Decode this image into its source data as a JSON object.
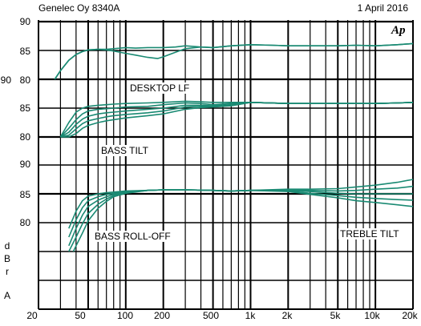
{
  "header": {
    "left": "Genelec Oy 8340A",
    "right": "1 April 2016"
  },
  "logo": "Ap",
  "unit_label": [
    "d",
    "B",
    "r",
    "A"
  ],
  "chart_data": {
    "type": "line",
    "x_scale": "log",
    "xlim": [
      20,
      20000
    ],
    "x_ticks": [
      20,
      50,
      100,
      200,
      500,
      1000,
      2000,
      5000,
      10000,
      20000
    ],
    "x_tick_labels": [
      "20",
      "50",
      "100",
      "200",
      "500",
      "1k",
      "2k",
      "5k",
      "10k",
      "20k"
    ],
    "ylabel": "dBrA",
    "grid": true,
    "panels": [
      {
        "annotation": "DESKTOP LF",
        "ylim": [
          80,
          90
        ],
        "y_ticks": [
          80,
          85,
          90
        ],
        "series": [
          {
            "x": [
              27,
              30,
              35,
              40,
              45,
              50,
              60,
              70,
              80,
              100,
              120,
              150,
              180,
              200,
              250,
              300,
              400,
              500,
              700,
              1000,
              1500,
              2000,
              3000,
              5000,
              7000,
              10000,
              15000,
              20000
            ],
            "y": [
              80,
              81.5,
              83.3,
              84.3,
              84.8,
              85.1,
              85.2,
              85.2,
              85.3,
              85.5,
              85.4,
              85.5,
              85.5,
              85.5,
              85.6,
              85.8,
              85.6,
              85.5,
              85.8,
              86,
              85.9,
              85.8,
              85.8,
              85.8,
              85.9,
              85.8,
              86,
              86.2
            ]
          },
          {
            "x": [
              27,
              30,
              35,
              40,
              45,
              50,
              60,
              70,
              80,
              100,
              120,
              150,
              180,
              200,
              250,
              300,
              400,
              500,
              700,
              1000,
              1500,
              2000,
              3000,
              5000,
              7000,
              10000,
              15000,
              20000
            ],
            "y": [
              80,
              81.5,
              83.3,
              84.3,
              84.8,
              85.1,
              85.2,
              85.1,
              84.9,
              84.5,
              84.2,
              83.8,
              83.6,
              83.9,
              84.7,
              85.3,
              85.6,
              85.5,
              85.8,
              86,
              85.9,
              85.8,
              85.8,
              85.8,
              85.9,
              85.8,
              86,
              86.2
            ]
          }
        ]
      },
      {
        "annotation": "BASS TILT",
        "ylim": [
          80,
          90
        ],
        "y_ticks": [
          80,
          85,
          90
        ],
        "series": [
          {
            "x": [
              30,
              35,
              40,
              45,
              50,
              60,
              70,
              80,
              100,
              150,
              200,
              300,
              400,
              500,
              700,
              1000,
              2000,
              5000,
              10000,
              15000,
              20000
            ],
            "y": [
              80,
              82.5,
              84.3,
              85,
              85.3,
              85.5,
              85.6,
              85.7,
              85.8,
              85.9,
              86,
              86.2,
              86.1,
              86,
              86,
              86,
              85.8,
              85.8,
              85.8,
              85.9,
              86
            ]
          },
          {
            "x": [
              30,
              35,
              40,
              45,
              50,
              60,
              70,
              80,
              100,
              150,
              200,
              300,
              400,
              500,
              700,
              1000,
              2000,
              5000,
              10000,
              15000,
              20000
            ],
            "y": [
              80,
              81.5,
              83,
              84,
              84.5,
              84.8,
              84.9,
              85,
              85.2,
              85.3,
              85.6,
              85.9,
              85.8,
              85.6,
              85.8,
              86,
              85.8,
              85.8,
              85.8,
              85.9,
              86
            ]
          },
          {
            "x": [
              30,
              35,
              40,
              45,
              50,
              60,
              70,
              80,
              100,
              150,
              200,
              300,
              400,
              500,
              700,
              1000,
              2000,
              5000,
              10000,
              15000,
              20000
            ],
            "y": [
              80,
              80.8,
              82.2,
              83.1,
              83.6,
              84,
              84.2,
              84.3,
              84.5,
              84.8,
              85,
              85.5,
              85.5,
              85.4,
              85.6,
              86,
              85.8,
              85.8,
              85.8,
              85.9,
              86
            ]
          },
          {
            "x": [
              30,
              35,
              40,
              45,
              50,
              60,
              70,
              80,
              100,
              150,
              200,
              300,
              400,
              500,
              700,
              1000,
              2000,
              5000,
              10000,
              15000,
              20000
            ],
            "y": [
              80,
              80.3,
              81.4,
              82.3,
              82.8,
              83.2,
              83.5,
              83.7,
              83.9,
              84.2,
              84.5,
              85.2,
              85.3,
              85.3,
              85.5,
              86,
              85.8,
              85.8,
              85.8,
              85.9,
              86
            ]
          },
          {
            "x": [
              30,
              35,
              40,
              45,
              50,
              60,
              70,
              80,
              100,
              150,
              200,
              300,
              400,
              500,
              700,
              1000,
              2000,
              5000,
              10000,
              15000,
              20000
            ],
            "y": [
              80,
              80,
              80.6,
              81.5,
              82,
              82.5,
              82.8,
              83,
              83.3,
              83.7,
              84,
              84.8,
              85.1,
              85.2,
              85.4,
              86,
              85.8,
              85.8,
              85.8,
              85.9,
              86
            ]
          }
        ]
      },
      {
        "annotations": [
          "BASS ROLL-OFF",
          "TREBLE TILT"
        ],
        "ylim": [
          75,
          90
        ],
        "y_ticks": [
          80,
          85,
          90
        ],
        "series": [
          {
            "x": [
              35,
              40,
              45,
              50,
              60,
              70,
              80,
              100,
              150,
              200,
              300,
              500,
              700,
              1000,
              2000,
              3000,
              5000,
              7000,
              10000,
              15000,
              20000
            ],
            "y": [
              79,
              82,
              83.8,
              84.6,
              85,
              85.2,
              85.3,
              85.5,
              85.6,
              85.7,
              85.7,
              85.6,
              85.5,
              85.6,
              85.8,
              85.8,
              85.9,
              86.2,
              86.5,
              87,
              87.5
            ]
          },
          {
            "x": [
              35,
              40,
              45,
              50,
              60,
              70,
              80,
              100,
              150,
              200,
              300,
              500,
              700,
              1000,
              2000,
              3000,
              5000,
              7000,
              10000,
              15000,
              20000
            ],
            "y": [
              77.5,
              80.5,
              82.6,
              83.8,
              84.5,
              84.9,
              85.1,
              85.4,
              85.6,
              85.7,
              85.7,
              85.6,
              85.5,
              85.6,
              85.7,
              85.6,
              85.5,
              85.6,
              85.8,
              86,
              86.3
            ]
          },
          {
            "x": [
              35,
              40,
              45,
              50,
              60,
              70,
              80,
              100,
              150,
              200,
              300,
              500,
              700,
              1000,
              2000,
              3000,
              5000,
              7000,
              10000,
              15000,
              20000
            ],
            "y": [
              76,
              79,
              81.3,
              82.8,
              83.9,
              84.5,
              84.9,
              85.3,
              85.6,
              85.7,
              85.7,
              85.6,
              85.5,
              85.6,
              85.6,
              85.4,
              85.1,
              85,
              85,
              85,
              85
            ]
          },
          {
            "x": [
              35,
              40,
              45,
              50,
              60,
              70,
              80,
              100,
              150,
              200,
              300,
              500,
              700,
              1000,
              2000,
              3000,
              5000,
              7000,
              10000,
              15000,
              20000
            ],
            "y": [
              75,
              77.5,
              79.8,
              81.6,
              83.2,
              84.1,
              84.7,
              85.2,
              85.6,
              85.7,
              85.7,
              85.6,
              85.5,
              85.6,
              85.5,
              85.1,
              84.7,
              84.4,
              84.2,
              84,
              83.9
            ]
          },
          {
            "x": [
              38,
              40,
              45,
              50,
              60,
              70,
              80,
              100,
              150,
              200,
              300,
              500,
              700,
              1000,
              2000,
              3000,
              5000,
              7000,
              10000,
              15000,
              20000
            ],
            "y": [
              75,
              76,
              78.2,
              80.3,
              82.5,
              83.7,
              84.5,
              85.1,
              85.6,
              85.7,
              85.7,
              85.6,
              85.5,
              85.6,
              85.4,
              84.9,
              84.3,
              83.8,
              83.5,
              83.1,
              82.8
            ]
          }
        ]
      }
    ]
  }
}
